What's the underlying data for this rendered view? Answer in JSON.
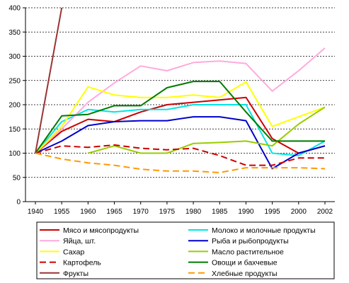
{
  "chart_data": {
    "type": "line",
    "title": "",
    "xlabel": "",
    "ylabel": "",
    "categories": [
      "1940",
      "1955",
      "1960",
      "1965",
      "1970",
      "1975",
      "1980",
      "1985",
      "1990",
      "1995",
      "2000",
      "2002"
    ],
    "y_ticks": [
      "0",
      "50",
      "100",
      "150",
      "200",
      "250",
      "300",
      "350",
      "400"
    ],
    "ylim": [
      0,
      400
    ],
    "grid": "horizontal-dashed",
    "legend_position": "bottom",
    "series": [
      {
        "name": "Мясо и мясопродукты",
        "color": "#cc0000",
        "dash": "solid",
        "values": [
          100,
          145,
          170,
          165,
          185,
          200,
          205,
          210,
          215,
          130,
          100,
          115
        ]
      },
      {
        "name": "Молоко и молочные продукты",
        "color": "#00e5e5",
        "dash": "solid",
        "values": [
          100,
          165,
          190,
          185,
          190,
          190,
          200,
          200,
          200,
          100,
          95,
          125
        ]
      },
      {
        "name": "Яйца, шт.",
        "color": "#ffaadd",
        "dash": "solid",
        "values": [
          100,
          150,
          205,
          245,
          280,
          270,
          287,
          290,
          285,
          228,
          270,
          317
        ]
      },
      {
        "name": "Рыба и рыбопродукты",
        "color": "#0000cc",
        "dash": "solid",
        "values": [
          100,
          125,
          157,
          165,
          167,
          167,
          175,
          175,
          167,
          68,
          100,
          115
        ]
      },
      {
        "name": "Сахар",
        "color": "#ffff00",
        "dash": "solid",
        "values": [
          100,
          155,
          237,
          220,
          215,
          215,
          220,
          215,
          247,
          155,
          175,
          195
        ]
      },
      {
        "name": "Масло растительное",
        "color": "#99cc00",
        "dash": "solid",
        "values": [
          null,
          null,
          100,
          115,
          100,
          100,
          120,
          122,
          125,
          115,
          160,
          195
        ]
      },
      {
        "name": "Картофель",
        "color": "#cc0000",
        "dash": "dashed",
        "values": [
          100,
          115,
          112,
          117,
          110,
          107,
          110,
          95,
          75,
          75,
          90,
          90
        ]
      },
      {
        "name": "Овощи и бахчевые",
        "color": "#007a00",
        "dash": "solid",
        "values": [
          100,
          177,
          180,
          198,
          198,
          235,
          248,
          248,
          185,
          125,
          125,
          125
        ]
      },
      {
        "name": "Фрукты",
        "color": "#993333",
        "dash": "solid",
        "values": [
          100,
          400,
          null,
          null,
          null,
          null,
          null,
          null,
          null,
          null,
          null,
          null
        ]
      },
      {
        "name": "Хлебные продукты",
        "color": "#ff9900",
        "dash": "dashed",
        "values": [
          100,
          88,
          80,
          75,
          67,
          63,
          63,
          60,
          70,
          70,
          70,
          68
        ]
      }
    ]
  }
}
